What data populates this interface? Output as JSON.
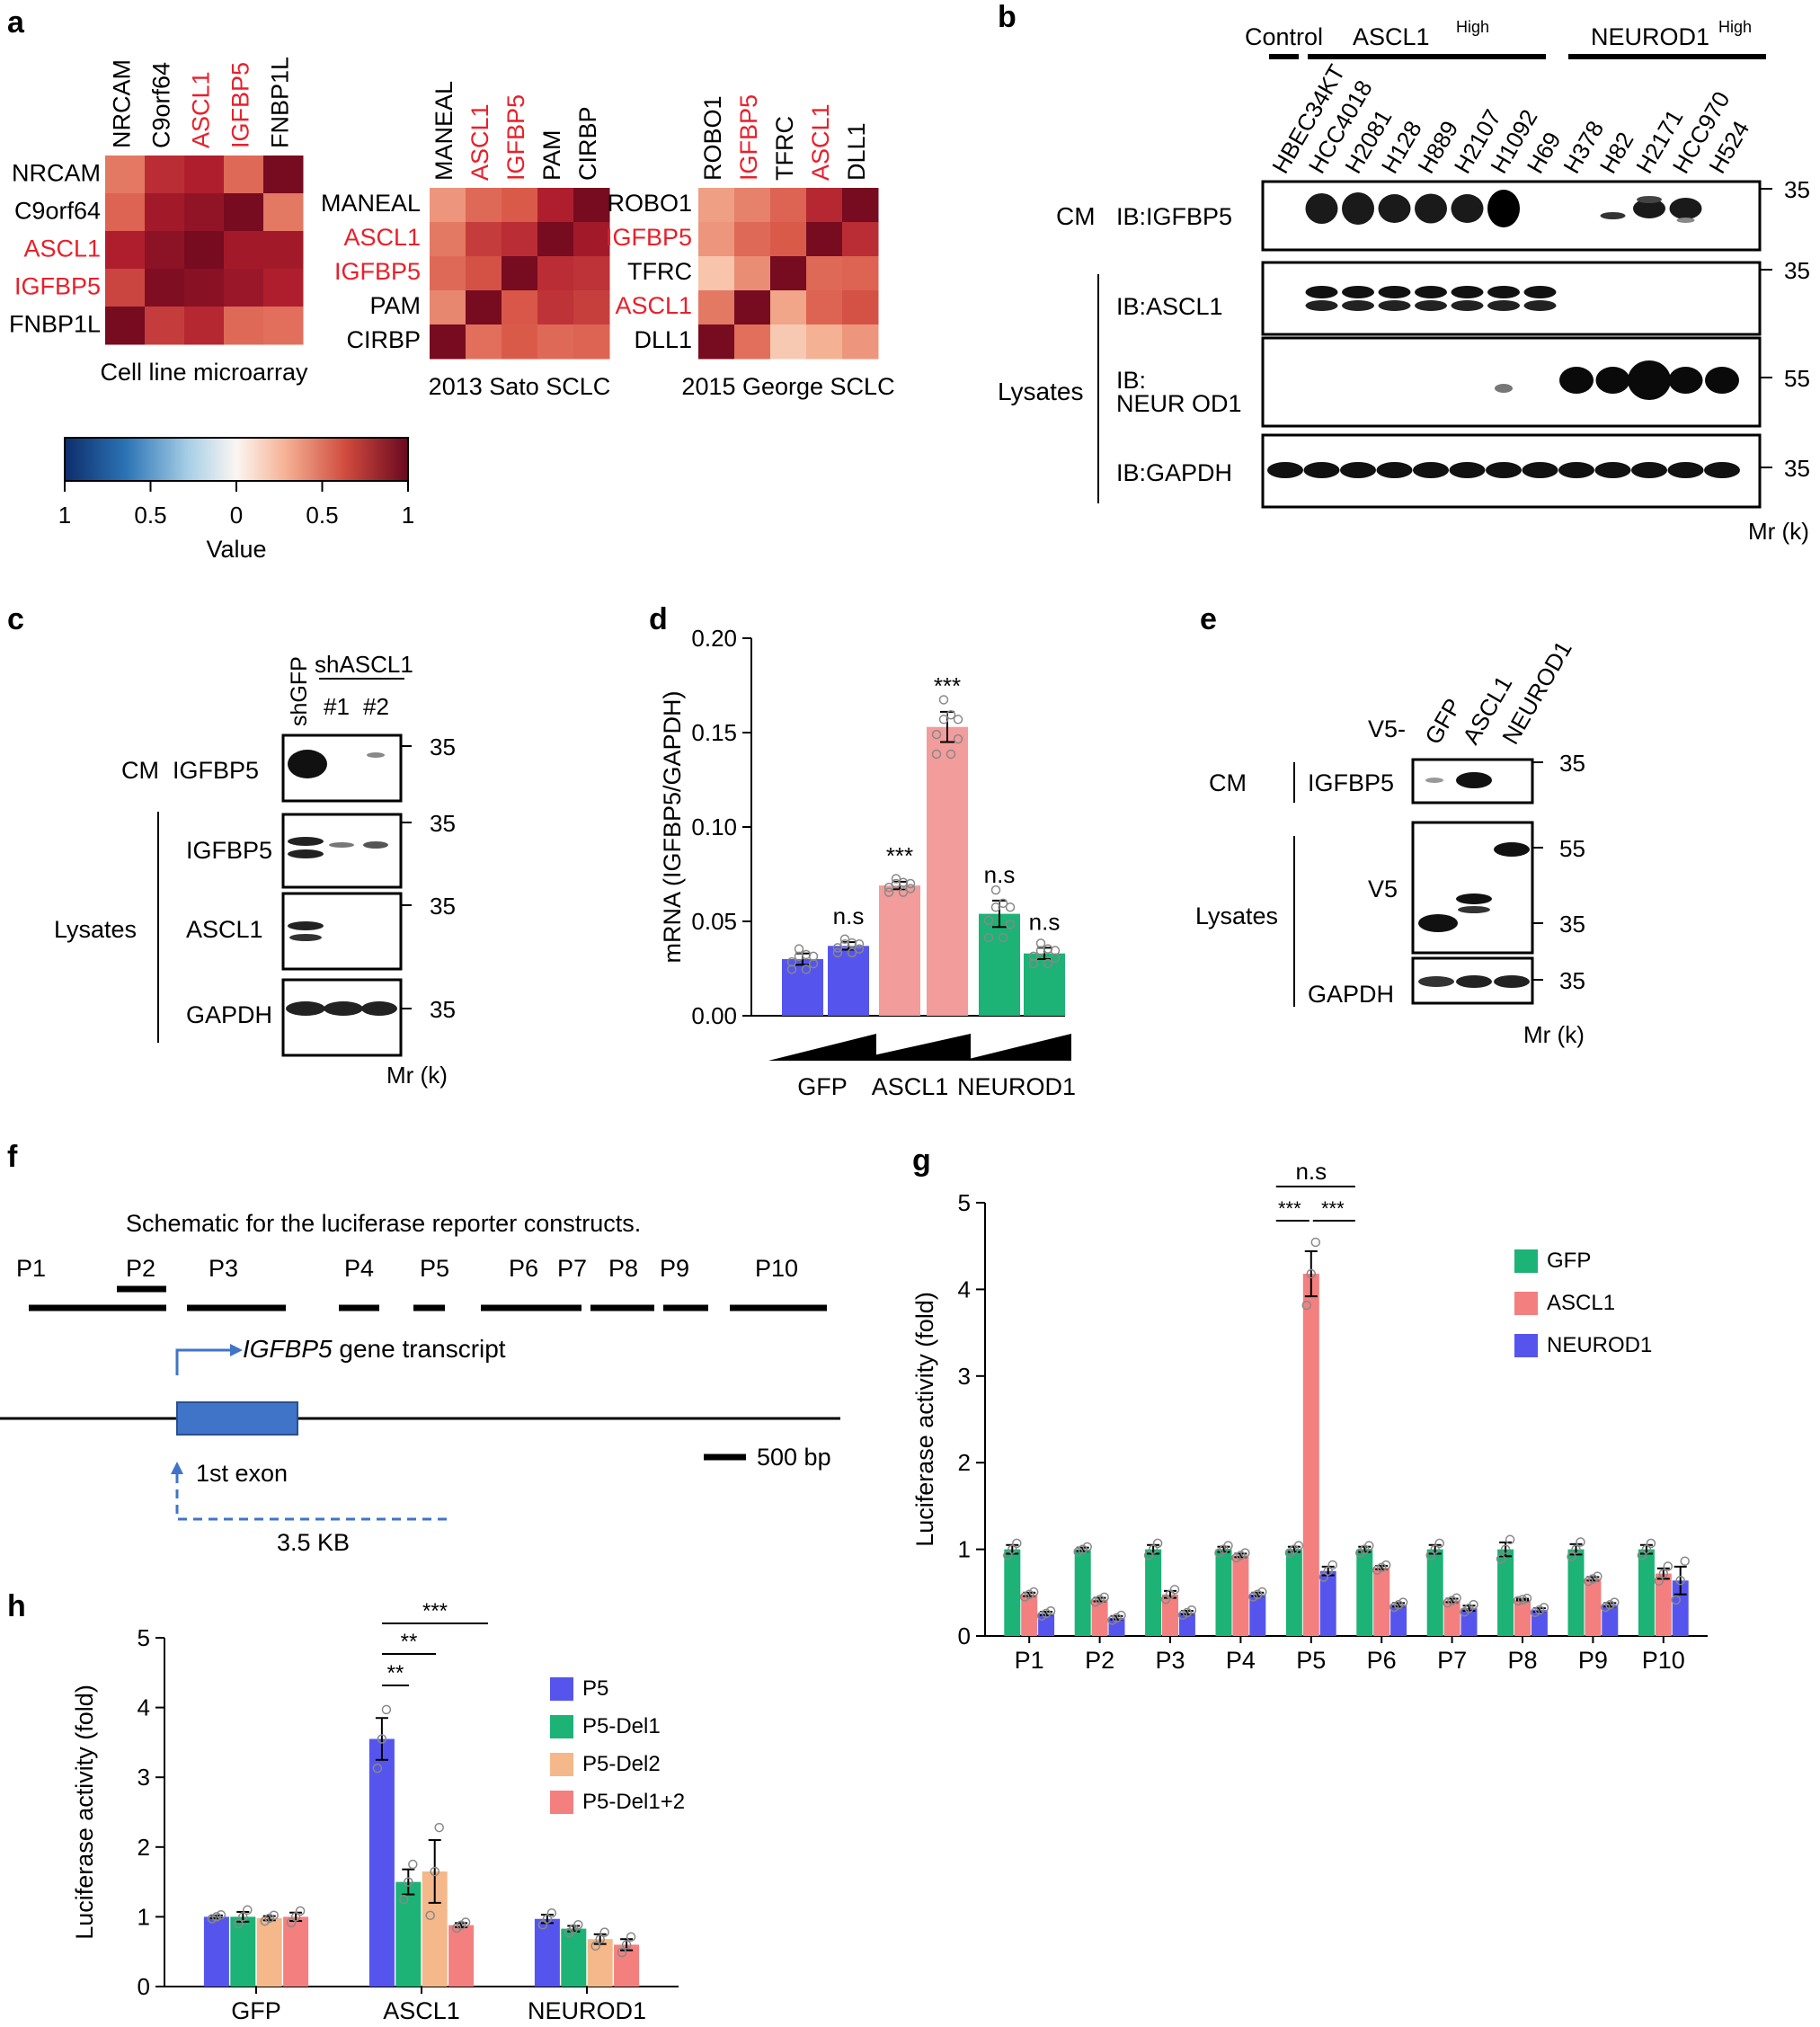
{
  "colors": {
    "red": "#e8202a",
    "blue": "#5555ee",
    "green": "#1db276",
    "salmon": "#f29c9c",
    "pink": "#f47f7f",
    "orange": "#f4b88a",
    "schematic_blue": "#3f74c8"
  },
  "panel_a": {
    "letter": "a",
    "heatmaps": [
      {
        "title": "Cell line microarray",
        "genes": [
          "NRCAM",
          "C9orf64",
          "ASCL1",
          "IGFBP5",
          "FNBP1L"
        ],
        "red_genes": [
          "ASCL1",
          "IGFBP5"
        ],
        "values": [
          [
            0.55,
            0.8,
            0.85,
            0.6,
            0.98
          ],
          [
            0.62,
            0.88,
            0.92,
            0.98,
            0.55
          ],
          [
            0.85,
            0.93,
            0.98,
            0.88,
            0.88
          ],
          [
            0.72,
            0.96,
            0.94,
            0.9,
            0.85
          ],
          [
            0.98,
            0.75,
            0.82,
            0.6,
            0.58
          ]
        ]
      },
      {
        "title": "2013 Sato SCLC",
        "genes": [
          "MANEAL",
          "ASCL1",
          "IGFBP5",
          "PAM",
          "CIRBP"
        ],
        "red_genes": [
          "ASCL1",
          "IGFBP5"
        ],
        "values": [
          [
            0.45,
            0.6,
            0.65,
            0.85,
            0.98
          ],
          [
            0.55,
            0.75,
            0.8,
            0.98,
            0.88
          ],
          [
            0.6,
            0.68,
            0.98,
            0.8,
            0.78
          ],
          [
            0.5,
            0.98,
            0.66,
            0.78,
            0.74
          ],
          [
            0.98,
            0.58,
            0.65,
            0.6,
            0.62
          ]
        ]
      },
      {
        "title": "2015 George SCLC",
        "genes": [
          "ROBO1",
          "IGFBP5",
          "TFRC",
          "ASCL1",
          "DLL1"
        ],
        "red_genes": [
          "IGFBP5",
          "ASCL1"
        ],
        "values": [
          [
            0.42,
            0.52,
            0.62,
            0.82,
            0.98
          ],
          [
            0.45,
            0.6,
            0.65,
            0.98,
            0.8
          ],
          [
            0.25,
            0.48,
            0.98,
            0.6,
            0.62
          ],
          [
            0.55,
            0.98,
            0.4,
            0.62,
            0.68
          ],
          [
            0.98,
            0.58,
            0.22,
            0.36,
            0.45
          ]
        ]
      }
    ],
    "colorbar": {
      "tick_labels": [
        "1",
        "0.5",
        "0",
        "0.5",
        "1"
      ],
      "label": "Value",
      "range": [
        -1,
        1
      ]
    }
  },
  "panel_b": {
    "letter": "b",
    "groups": {
      "control": "Control",
      "ascl1": "ASCL1",
      "neurod1": "NEUROD1",
      "sup": "High"
    },
    "lanes": [
      "HBEC34KT",
      "HCC4018",
      "H2081",
      "H128",
      "H889",
      "H2107",
      "H1092",
      "H69",
      "H378",
      "H82",
      "H2171",
      "HCC970",
      "H524"
    ],
    "cm_label": "CM",
    "lysates_label": "Lysates",
    "blots": [
      "IB:IGFBP5",
      "IB:ASCL1",
      "IB:",
      "NEUR OD1",
      "IB:GAPDH"
    ],
    "markers": [
      "35",
      "35",
      "55",
      "35"
    ],
    "mr": "Mr (k)"
  },
  "panel_c": {
    "letter": "c",
    "lanes": [
      "shGFP",
      "shASCL1",
      "#1",
      "#2"
    ],
    "cm_label": "CM",
    "lysates_label": "Lysates",
    "blots": [
      "IGFBP5",
      "IGFBP5",
      "ASCL1",
      "GAPDH"
    ],
    "markers": [
      "35",
      "35",
      "35",
      "35"
    ],
    "mr": "Mr (k)"
  },
  "panel_e": {
    "letter": "e",
    "prefix": "V5-",
    "lanes": [
      "GFP",
      "ASCL1",
      "NEUROD1"
    ],
    "cm_label": "CM",
    "lysates_label": "Lysates",
    "blots": [
      "IGFBP5",
      "V5",
      "GAPDH"
    ],
    "markers": [
      "35",
      "55",
      "35",
      "35"
    ],
    "mr": "Mr (k)"
  },
  "panel_f": {
    "letter": "f",
    "title": "Schematic for the luciferase reporter constructs.",
    "constructs": [
      "P1",
      "P2",
      "P3",
      "P4",
      "P5",
      "P6",
      "P7",
      "P8",
      "P9",
      "P10"
    ],
    "transcript_italic": "IGFBP5",
    "transcript_rest": " gene transcript",
    "exon_label": "1st  exon",
    "distance_label": "3.5 KB",
    "scale_label": "500 bp"
  },
  "chart_data": [
    {
      "panel": "d",
      "type": "bar",
      "ylabel": "mRNA (IGFBP5/GAPDH)",
      "ylim": [
        0,
        0.2
      ],
      "yticks": [
        "0.00",
        "0.05",
        "0.10",
        "0.15",
        "0.20"
      ],
      "groups": [
        "GFP",
        "ASCL1",
        "NEUROD1"
      ],
      "bars": [
        {
          "group": "GFP",
          "dose": "low",
          "value": 0.03,
          "err": 0.003,
          "sig": ""
        },
        {
          "group": "GFP",
          "dose": "high",
          "value": 0.037,
          "err": 0.002,
          "sig": "n.s"
        },
        {
          "group": "ASCL1",
          "dose": "low",
          "value": 0.069,
          "err": 0.002,
          "sig": "***"
        },
        {
          "group": "ASCL1",
          "dose": "high",
          "value": 0.153,
          "err": 0.008,
          "sig": "***"
        },
        {
          "group": "NEUROD1",
          "dose": "low",
          "value": 0.054,
          "err": 0.007,
          "sig": "n.s"
        },
        {
          "group": "NEUROD1",
          "dose": "high",
          "value": 0.033,
          "err": 0.003,
          "sig": "n.s"
        }
      ]
    },
    {
      "panel": "g",
      "type": "bar",
      "ylabel": "Luciferase activity (fold)",
      "ylim": [
        0,
        5
      ],
      "yticks": [
        "0",
        "1",
        "2",
        "3",
        "4",
        "5"
      ],
      "categories": [
        "P1",
        "P2",
        "P3",
        "P4",
        "P5",
        "P6",
        "P7",
        "P8",
        "P9",
        "P10"
      ],
      "series": [
        {
          "name": "GFP",
          "values": [
            1.0,
            1.0,
            1.0,
            1.0,
            1.0,
            1.0,
            1.0,
            1.0,
            1.0,
            1.0
          ],
          "err": [
            0.05,
            0.02,
            0.05,
            0.03,
            0.03,
            0.03,
            0.05,
            0.08,
            0.06,
            0.05
          ]
        },
        {
          "name": "ASCL1",
          "values": [
            0.48,
            0.42,
            0.48,
            0.93,
            4.18,
            0.79,
            0.41,
            0.42,
            0.66,
            0.72
          ],
          "err": [
            0.02,
            0.02,
            0.04,
            0.02,
            0.26,
            0.02,
            0.02,
            0.01,
            0.02,
            0.06
          ]
        },
        {
          "name": "NEUROD1",
          "values": [
            0.26,
            0.21,
            0.27,
            0.48,
            0.75,
            0.36,
            0.32,
            0.3,
            0.36,
            0.64
          ],
          "err": [
            0.02,
            0.02,
            0.02,
            0.02,
            0.05,
            0.02,
            0.03,
            0.02,
            0.02,
            0.16
          ]
        }
      ],
      "annotations": {
        "top": "n.s",
        "left": "***",
        "right": "***"
      }
    },
    {
      "panel": "h",
      "type": "bar",
      "ylabel": "Luciferase activity (fold)",
      "ylim": [
        0,
        5
      ],
      "yticks": [
        "0",
        "1",
        "2",
        "3",
        "4",
        "5"
      ],
      "categories": [
        "GFP",
        "ASCL1",
        "NEUROD1"
      ],
      "series": [
        {
          "name": "P5",
          "values": [
            1.0,
            3.55,
            0.97
          ],
          "err": [
            0.02,
            0.3,
            0.06
          ]
        },
        {
          "name": "P5-Del1",
          "values": [
            1.0,
            1.5,
            0.83
          ],
          "err": [
            0.07,
            0.18,
            0.04
          ]
        },
        {
          "name": "P5-Del2",
          "values": [
            0.98,
            1.65,
            0.68
          ],
          "err": [
            0.03,
            0.45,
            0.07
          ]
        },
        {
          "name": "P5-Del1+2",
          "values": [
            1.0,
            0.88,
            0.6
          ],
          "err": [
            0.06,
            0.03,
            0.08
          ]
        }
      ],
      "annotations": [
        "**",
        "**",
        "***"
      ]
    }
  ]
}
